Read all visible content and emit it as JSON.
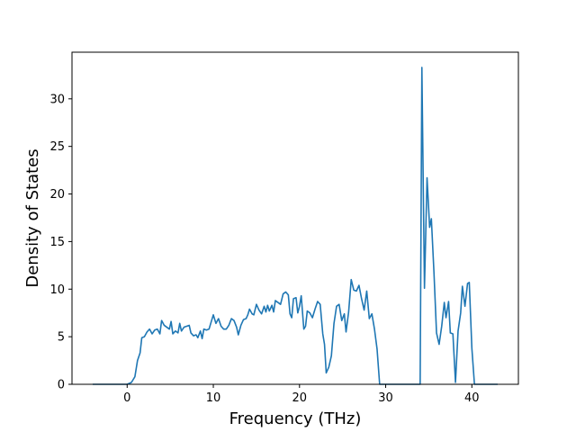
{
  "chart_data": {
    "type": "line",
    "title": "",
    "xlabel": "Frequency (THz)",
    "ylabel": "Density of States",
    "xlim": [
      -6.4,
      45.4
    ],
    "ylim": [
      0,
      34.9
    ],
    "xticks": [
      0,
      10,
      20,
      30,
      40
    ],
    "yticks": [
      0,
      5,
      10,
      15,
      20,
      25,
      30
    ],
    "grid": false,
    "legend": "none",
    "series": [
      {
        "color": "#1f77b4",
        "points": [
          [
            -4.0,
            0
          ],
          [
            0.0,
            0
          ],
          [
            0.5,
            0.2
          ],
          [
            0.9,
            0.8
          ],
          [
            1.2,
            2.5
          ],
          [
            1.5,
            3.3
          ],
          [
            1.7,
            4.9
          ],
          [
            2.0,
            5.0
          ],
          [
            2.3,
            5.5
          ],
          [
            2.6,
            5.8
          ],
          [
            2.9,
            5.3
          ],
          [
            3.2,
            5.7
          ],
          [
            3.5,
            5.8
          ],
          [
            3.8,
            5.3
          ],
          [
            4.0,
            6.7
          ],
          [
            4.3,
            6.2
          ],
          [
            4.6,
            6.0
          ],
          [
            4.9,
            5.8
          ],
          [
            5.1,
            6.6
          ],
          [
            5.3,
            5.3
          ],
          [
            5.6,
            5.6
          ],
          [
            5.9,
            5.4
          ],
          [
            6.1,
            6.4
          ],
          [
            6.3,
            5.6
          ],
          [
            6.6,
            6.0
          ],
          [
            6.9,
            6.1
          ],
          [
            7.2,
            6.2
          ],
          [
            7.4,
            5.4
          ],
          [
            7.7,
            5.1
          ],
          [
            8.0,
            5.2
          ],
          [
            8.2,
            4.9
          ],
          [
            8.5,
            5.6
          ],
          [
            8.7,
            4.8
          ],
          [
            8.9,
            5.8
          ],
          [
            9.2,
            5.7
          ],
          [
            9.5,
            5.8
          ],
          [
            9.7,
            6.4
          ],
          [
            10.0,
            7.3
          ],
          [
            10.3,
            6.4
          ],
          [
            10.6,
            6.9
          ],
          [
            10.9,
            6.1
          ],
          [
            11.2,
            5.8
          ],
          [
            11.5,
            5.8
          ],
          [
            11.8,
            6.2
          ],
          [
            12.1,
            6.9
          ],
          [
            12.4,
            6.7
          ],
          [
            12.7,
            6.0
          ],
          [
            12.9,
            5.2
          ],
          [
            13.2,
            6.2
          ],
          [
            13.5,
            6.8
          ],
          [
            13.8,
            6.9
          ],
          [
            14.0,
            7.3
          ],
          [
            14.2,
            7.9
          ],
          [
            14.5,
            7.4
          ],
          [
            14.7,
            7.3
          ],
          [
            15.0,
            8.4
          ],
          [
            15.3,
            7.8
          ],
          [
            15.6,
            7.4
          ],
          [
            15.9,
            8.2
          ],
          [
            16.1,
            7.6
          ],
          [
            16.3,
            8.3
          ],
          [
            16.5,
            7.7
          ],
          [
            16.8,
            8.3
          ],
          [
            17.0,
            7.6
          ],
          [
            17.2,
            8.8
          ],
          [
            17.5,
            8.6
          ],
          [
            17.8,
            8.4
          ],
          [
            18.1,
            9.5
          ],
          [
            18.4,
            9.7
          ],
          [
            18.7,
            9.4
          ],
          [
            18.9,
            7.4
          ],
          [
            19.1,
            7.0
          ],
          [
            19.3,
            9.0
          ],
          [
            19.6,
            9.1
          ],
          [
            19.8,
            7.5
          ],
          [
            20.0,
            8.2
          ],
          [
            20.2,
            9.3
          ],
          [
            20.5,
            5.8
          ],
          [
            20.7,
            6.1
          ],
          [
            20.9,
            7.7
          ],
          [
            21.2,
            7.5
          ],
          [
            21.5,
            7.0
          ],
          [
            21.8,
            7.9
          ],
          [
            22.1,
            8.7
          ],
          [
            22.4,
            8.4
          ],
          [
            22.7,
            5.3
          ],
          [
            22.9,
            4.2
          ],
          [
            23.1,
            1.2
          ],
          [
            23.4,
            1.8
          ],
          [
            23.7,
            3.0
          ],
          [
            24.0,
            6.4
          ],
          [
            24.3,
            8.2
          ],
          [
            24.6,
            8.4
          ],
          [
            24.9,
            6.7
          ],
          [
            25.2,
            7.4
          ],
          [
            25.4,
            5.5
          ],
          [
            25.7,
            7.6
          ],
          [
            26.0,
            11.0
          ],
          [
            26.3,
            9.9
          ],
          [
            26.6,
            9.8
          ],
          [
            26.9,
            10.4
          ],
          [
            27.2,
            9.0
          ],
          [
            27.5,
            7.8
          ],
          [
            27.8,
            9.8
          ],
          [
            28.1,
            6.9
          ],
          [
            28.4,
            7.4
          ],
          [
            28.7,
            5.8
          ],
          [
            29.0,
            3.7
          ],
          [
            29.3,
            0
          ],
          [
            34.0,
            0
          ],
          [
            34.2,
            33.3
          ],
          [
            34.5,
            10.1
          ],
          [
            34.8,
            21.7
          ],
          [
            35.1,
            16.5
          ],
          [
            35.3,
            17.4
          ],
          [
            35.6,
            11.8
          ],
          [
            35.9,
            5.4
          ],
          [
            36.2,
            4.2
          ],
          [
            36.5,
            6.1
          ],
          [
            36.8,
            8.6
          ],
          [
            37.0,
            7.0
          ],
          [
            37.3,
            8.7
          ],
          [
            37.5,
            5.4
          ],
          [
            37.8,
            5.3
          ],
          [
            38.1,
            0.2
          ],
          [
            38.4,
            5.6
          ],
          [
            38.7,
            7.5
          ],
          [
            38.9,
            10.3
          ],
          [
            39.2,
            8.2
          ],
          [
            39.5,
            10.6
          ],
          [
            39.7,
            10.7
          ],
          [
            40.0,
            3.8
          ],
          [
            40.3,
            0
          ],
          [
            42.0,
            0
          ],
          [
            43.0,
            0
          ]
        ]
      }
    ]
  }
}
